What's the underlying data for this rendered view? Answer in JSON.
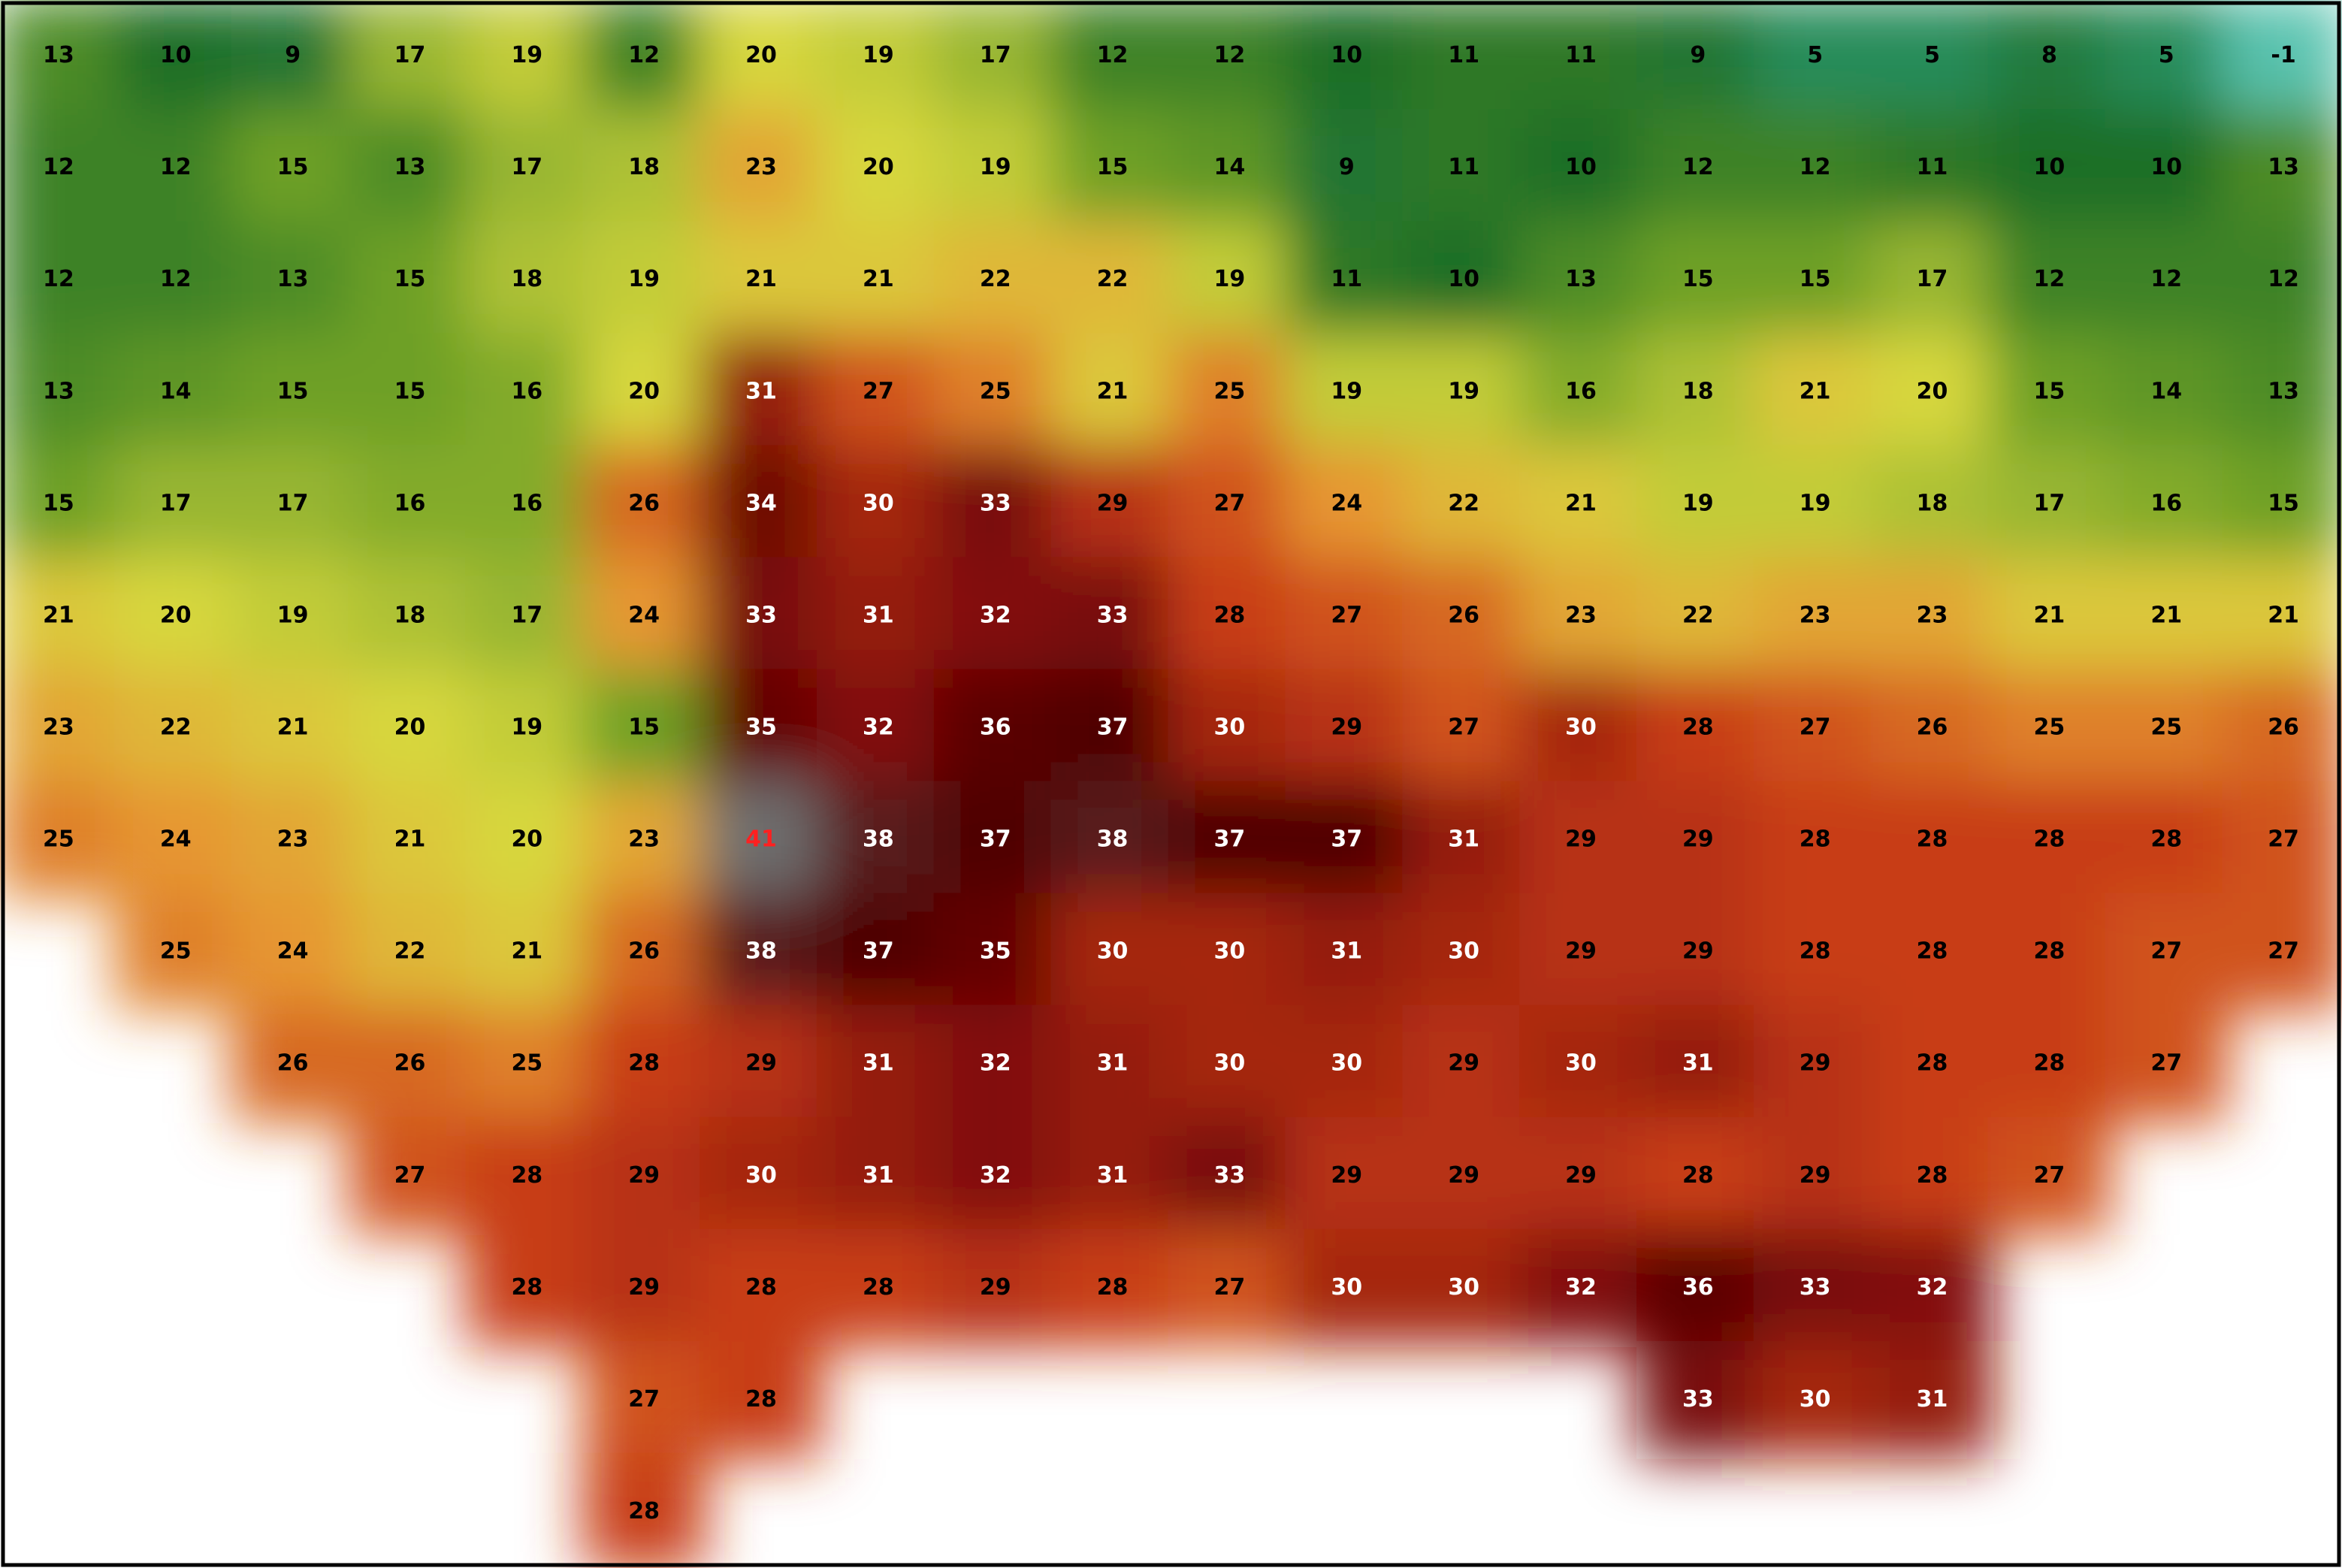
{
  "grid": {
    "rows": [
      [
        13,
        10,
        9,
        17,
        19,
        12,
        20,
        19,
        17,
        12,
        12,
        10,
        11,
        11,
        9,
        5,
        5,
        8,
        5,
        -1
      ],
      [
        12,
        12,
        15,
        13,
        17,
        18,
        23,
        20,
        19,
        15,
        14,
        9,
        11,
        10,
        12,
        12,
        11,
        10,
        10,
        13
      ],
      [
        12,
        12,
        13,
        15,
        18,
        19,
        21,
        21,
        22,
        22,
        19,
        11,
        10,
        13,
        15,
        15,
        17,
        12,
        12,
        12
      ],
      [
        13,
        14,
        15,
        15,
        16,
        20,
        31,
        27,
        25,
        21,
        25,
        19,
        19,
        16,
        18,
        21,
        20,
        15,
        14,
        13
      ],
      [
        15,
        17,
        17,
        16,
        16,
        26,
        34,
        30,
        33,
        29,
        27,
        24,
        22,
        21,
        19,
        19,
        18,
        17,
        16,
        15
      ],
      [
        21,
        20,
        19,
        18,
        17,
        24,
        33,
        31,
        32,
        33,
        28,
        27,
        26,
        23,
        22,
        23,
        23,
        21,
        21,
        21
      ],
      [
        23,
        22,
        21,
        20,
        19,
        15,
        35,
        32,
        36,
        37,
        30,
        29,
        27,
        30,
        28,
        27,
        26,
        25,
        25,
        26
      ],
      [
        25,
        24,
        23,
        21,
        20,
        23,
        41,
        38,
        37,
        38,
        37,
        37,
        31,
        29,
        29,
        28,
        28,
        28,
        28,
        27
      ],
      [
        null,
        25,
        24,
        22,
        21,
        26,
        38,
        37,
        35,
        30,
        30,
        31,
        30,
        29,
        29,
        28,
        28,
        28,
        27,
        27
      ],
      [
        null,
        null,
        26,
        26,
        25,
        28,
        29,
        31,
        32,
        31,
        30,
        30,
        29,
        30,
        31,
        29,
        28,
        28,
        27,
        null
      ],
      [
        null,
        null,
        null,
        27,
        28,
        29,
        30,
        31,
        32,
        31,
        33,
        29,
        29,
        29,
        28,
        29,
        28,
        27,
        null,
        null
      ],
      [
        null,
        null,
        null,
        null,
        28,
        29,
        28,
        28,
        29,
        28,
        27,
        30,
        30,
        32,
        36,
        33,
        32,
        null,
        null,
        null
      ],
      [
        null,
        null,
        null,
        null,
        null,
        27,
        28,
        null,
        null,
        null,
        null,
        null,
        null,
        null,
        33,
        30,
        31,
        null,
        null,
        null
      ],
      [
        null,
        null,
        null,
        null,
        null,
        28,
        null,
        null,
        null,
        null,
        null,
        null,
        null,
        null,
        null,
        null,
        null,
        null,
        null,
        null
      ]
    ]
  }
}
